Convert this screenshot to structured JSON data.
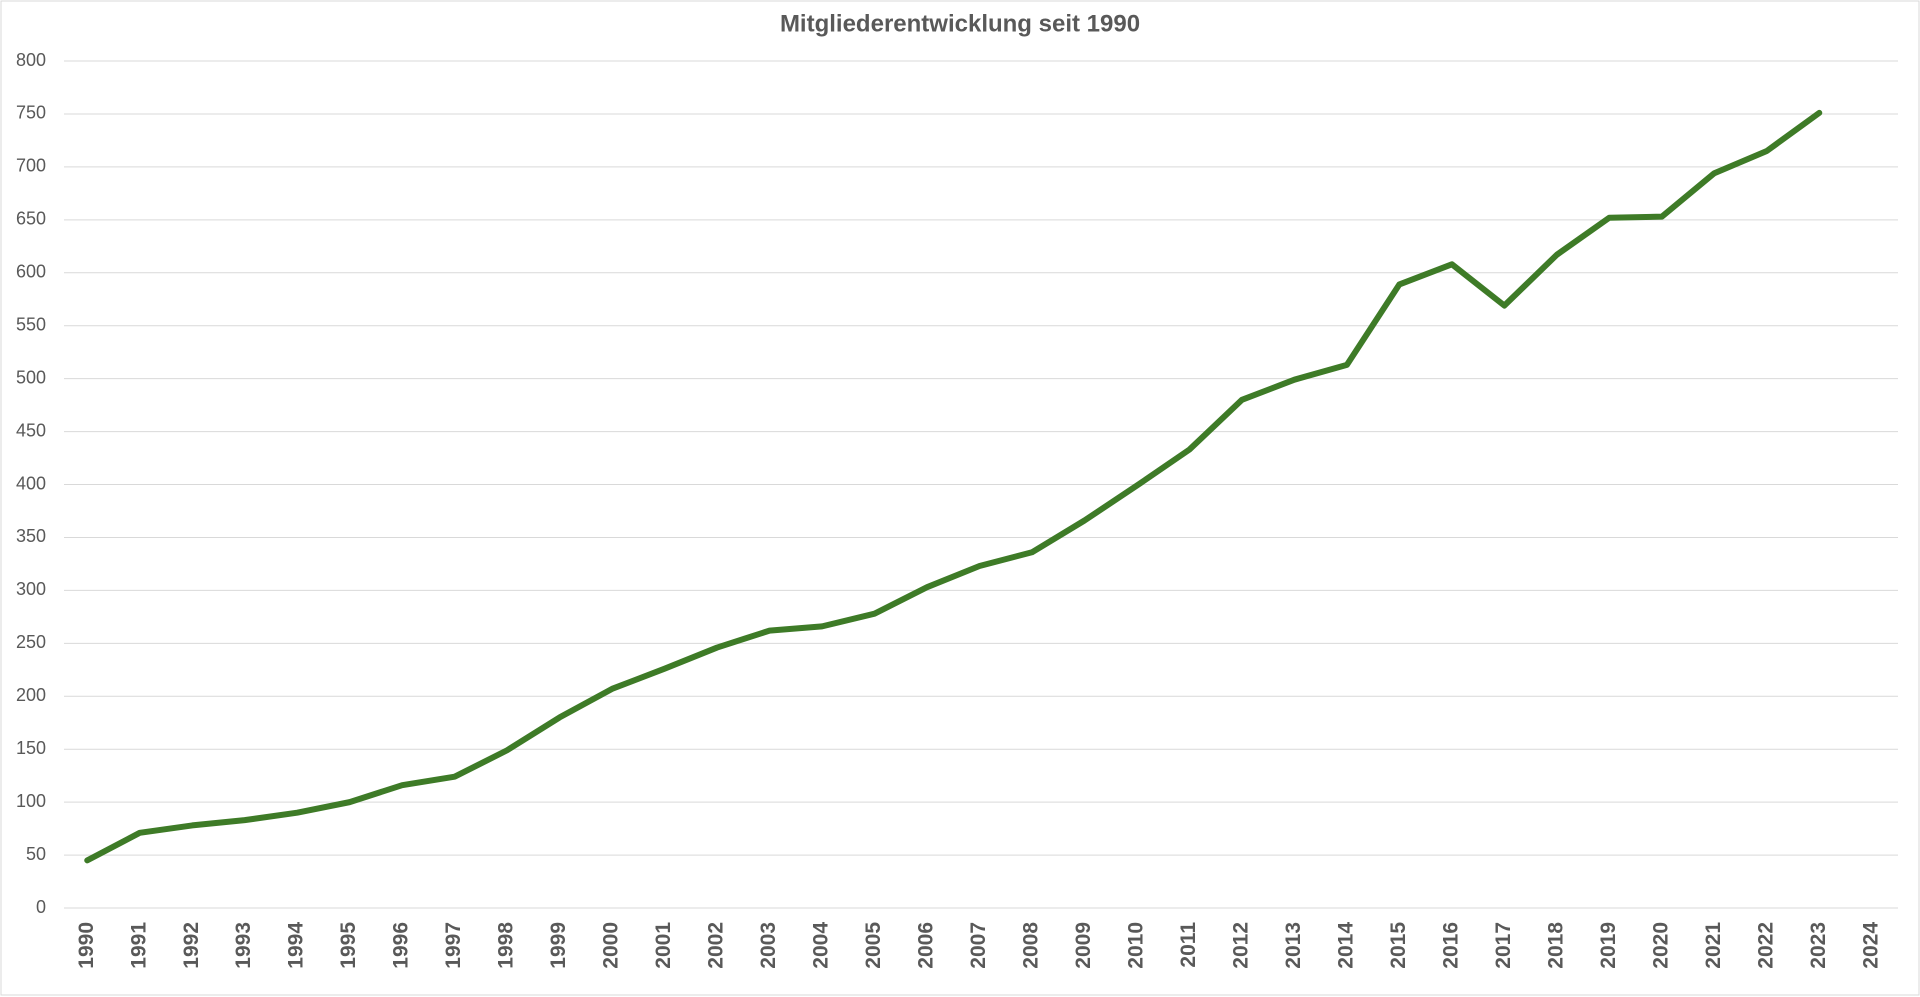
{
  "chart_data": {
    "type": "line",
    "title": "Mitgliederentwicklung seit 1990",
    "categories": [
      "1990",
      "1991",
      "1992",
      "1993",
      "1994",
      "1995",
      "1996",
      "1997",
      "1998",
      "1999",
      "2000",
      "2001",
      "2002",
      "2003",
      "2004",
      "2005",
      "2006",
      "2007",
      "2008",
      "2009",
      "2010",
      "2011",
      "2012",
      "2013",
      "2014",
      "2015",
      "2016",
      "2017",
      "2018",
      "2019",
      "2020",
      "2021",
      "2022",
      "2023",
      "2024"
    ],
    "values": [
      45,
      71,
      78,
      83,
      90,
      100,
      116,
      124,
      149,
      180,
      207,
      226,
      246,
      262,
      266,
      278,
      303,
      323,
      336,
      366,
      399,
      433,
      480,
      499,
      513,
      589,
      608,
      569,
      617,
      652,
      653,
      694,
      715,
      751,
      null
    ],
    "color": "#3e7b27",
    "ylim": [
      0,
      800
    ],
    "yticks": [
      0,
      50,
      100,
      150,
      200,
      250,
      300,
      350,
      400,
      450,
      500,
      550,
      600,
      650,
      700,
      750,
      800
    ],
    "grid": true
  }
}
